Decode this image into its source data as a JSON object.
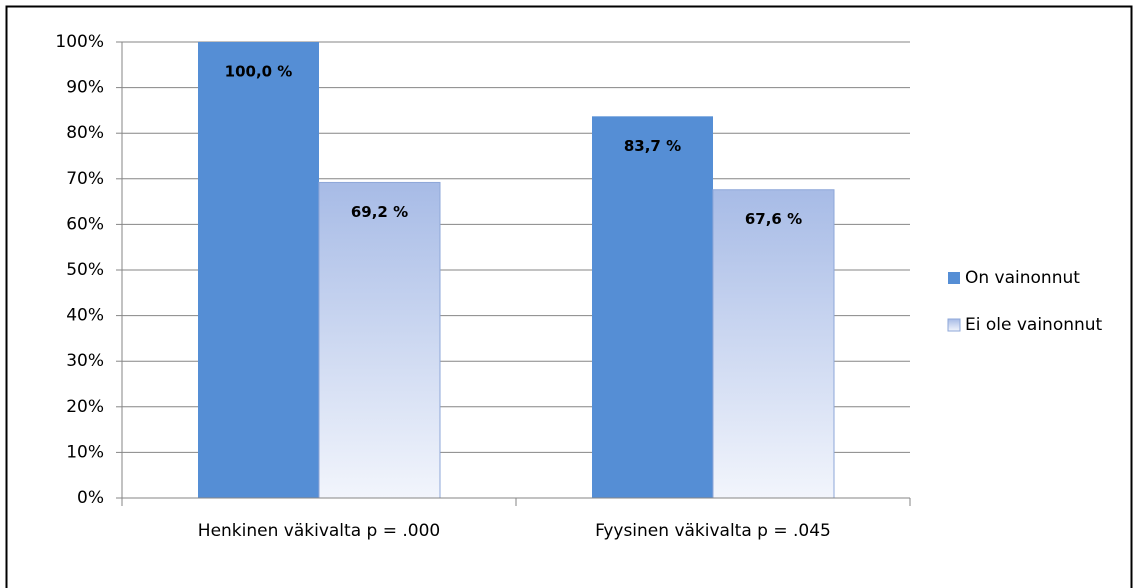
{
  "chart_data": {
    "type": "bar",
    "categories": [
      "Henkinen väkivalta p = .000",
      "Fyysinen väkivalta p = .045"
    ],
    "series": [
      {
        "name": "On vainonnut",
        "color": "#558ed5",
        "values": [
          100,
          83.7
        ],
        "value_labels": [
          "100,0 %",
          "83,7 %"
        ]
      },
      {
        "name": "Ei ole vainonnut",
        "color": "#a7bbe6",
        "values": [
          69.2,
          67.6
        ],
        "value_labels": [
          "69,2 %",
          "67,6 %"
        ]
      }
    ],
    "ylim": [
      0,
      100
    ],
    "yticks": [
      {
        "value": 0,
        "label": "0%"
      },
      {
        "value": 10,
        "label": "10%"
      },
      {
        "value": 20,
        "label": "20%"
      },
      {
        "value": 30,
        "label": "30%"
      },
      {
        "value": 40,
        "label": "40%"
      },
      {
        "value": 50,
        "label": "50%"
      },
      {
        "value": 60,
        "label": "60%"
      },
      {
        "value": 70,
        "label": "70%"
      },
      {
        "value": 80,
        "label": "80%"
      },
      {
        "value": 90,
        "label": "90%"
      },
      {
        "value": 100,
        "label": "100%"
      }
    ],
    "grid": true,
    "legend": "right"
  }
}
